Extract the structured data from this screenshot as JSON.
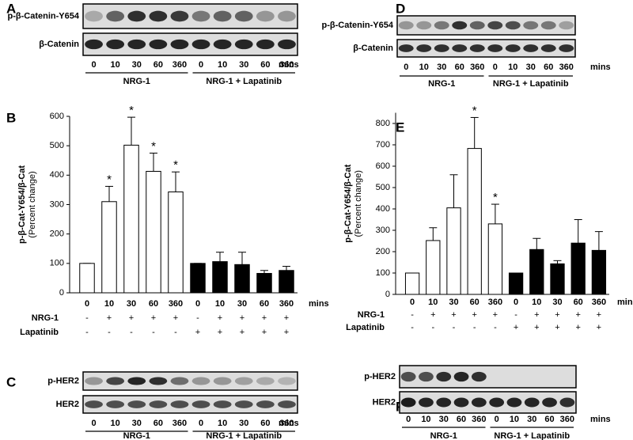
{
  "chart_data": [
    {
      "type": "bar",
      "panel": "B",
      "ylabel": "p-β-Cat-Y654/β-Cat",
      "ylabel_sub": "(Percent change)",
      "categories": [
        "0",
        "10",
        "30",
        "60",
        "360",
        "0",
        "10",
        "30",
        "60",
        "360"
      ],
      "x_unit": "mins",
      "values": [
        100,
        310,
        502,
        413,
        343,
        100,
        106,
        96,
        66,
        76
      ],
      "errors": [
        0,
        52,
        95,
        62,
        68,
        0,
        32,
        42,
        10,
        14
      ],
      "colors": [
        "#ffffff",
        "#ffffff",
        "#ffffff",
        "#ffffff",
        "#ffffff",
        "#000000",
        "#000000",
        "#000000",
        "#000000",
        "#000000"
      ],
      "significance": [
        null,
        "*",
        "*",
        "*",
        "*",
        null,
        null,
        null,
        null,
        null
      ],
      "conditions": [
        {
          "name": "NRG-1",
          "values": [
            "-",
            "+",
            "+",
            "+",
            "+",
            "-",
            "+",
            "+",
            "+",
            "+"
          ]
        },
        {
          "name": "Lapatinib",
          "values": [
            "-",
            "-",
            "-",
            "-",
            "-",
            "+",
            "+",
            "+",
            "+",
            "+"
          ]
        }
      ],
      "ylim": [
        0,
        600
      ],
      "yticks": [
        0,
        100,
        200,
        300,
        400,
        500,
        600
      ]
    },
    {
      "type": "bar",
      "panel": "E",
      "ylabel": "p-β-Cat-Y654/β-Cat",
      "ylabel_sub": "(Percent change)",
      "categories": [
        "0",
        "10",
        "30",
        "60",
        "360",
        "0",
        "10",
        "30",
        "60",
        "360"
      ],
      "x_unit": "mins",
      "values": [
        100,
        252,
        405,
        683,
        330,
        100,
        210,
        143,
        240,
        206
      ],
      "errors": [
        0,
        60,
        155,
        145,
        92,
        0,
        52,
        15,
        110,
        88
      ],
      "colors": [
        "#ffffff",
        "#ffffff",
        "#ffffff",
        "#ffffff",
        "#ffffff",
        "#000000",
        "#000000",
        "#000000",
        "#000000",
        "#000000"
      ],
      "significance": [
        null,
        null,
        null,
        "*",
        "*",
        null,
        null,
        null,
        null,
        null
      ],
      "conditions": [
        {
          "name": "NRG-1",
          "values": [
            "-",
            "+",
            "+",
            "+",
            "+",
            "-",
            "+",
            "+",
            "+",
            "+"
          ]
        },
        {
          "name": "Lapatinib",
          "values": [
            "-",
            "-",
            "-",
            "-",
            "-",
            "+",
            "+",
            "+",
            "+",
            "+"
          ]
        }
      ],
      "ylim": [
        0,
        850
      ],
      "yticks": [
        0,
        100,
        200,
        300,
        400,
        500,
        600,
        700,
        800
      ]
    }
  ],
  "blots": [
    {
      "panel": "A",
      "rows": [
        "p-β-Catenin-Y654",
        "β-Catenin"
      ],
      "lanes": [
        "0",
        "10",
        "30",
        "60",
        "360",
        "0",
        "10",
        "30",
        "60",
        "360"
      ],
      "unit": "mins",
      "groups": [
        "NRG-1",
        "NRG-1 + Lapatinib"
      ]
    },
    {
      "panel": "D",
      "rows": [
        "p-β-Catenin-Y654",
        "β-Catenin"
      ],
      "lanes": [
        "0",
        "10",
        "30",
        "60",
        "360",
        "0",
        "10",
        "30",
        "60",
        "360"
      ],
      "unit": "mins",
      "groups": [
        "NRG-1",
        "NRG-1 + Lapatinib"
      ]
    },
    {
      "panel": "C",
      "rows": [
        "p-HER2",
        "HER2"
      ],
      "lanes": [
        "0",
        "10",
        "30",
        "60",
        "360",
        "0",
        "10",
        "30",
        "60",
        "360"
      ],
      "unit": "mins",
      "groups": [
        "NRG-1",
        "NRG-1 + Lapatinib"
      ]
    },
    {
      "panel": "F",
      "rows": [
        "p-HER2",
        "HER2"
      ],
      "lanes": [
        "0",
        "10",
        "30",
        "60",
        "360",
        "0",
        "10",
        "30",
        "60",
        "360"
      ],
      "unit": "mins",
      "groups": [
        "NRG-1",
        "NRG-1 + Lapatinib"
      ]
    }
  ]
}
